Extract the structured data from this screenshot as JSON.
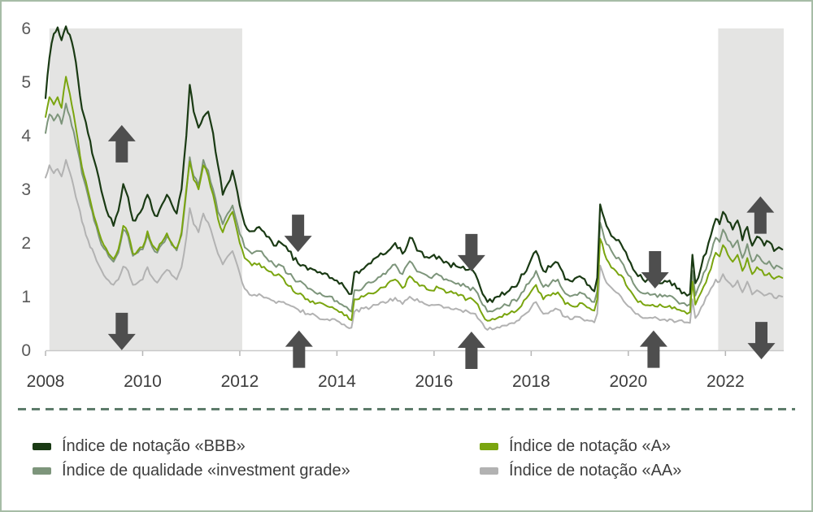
{
  "frame": {
    "border_color": "#a6bca6",
    "background": "#ffffff"
  },
  "divider": {
    "color": "#5e7c6b"
  },
  "chart_data": {
    "type": "line",
    "title": "",
    "xlabel": "",
    "ylabel": "",
    "x_axis": {
      "range": [
        2008,
        2023.2
      ],
      "ticks": [
        2008,
        2010,
        2012,
        2014,
        2016,
        2018,
        2020,
        2022
      ]
    },
    "y_axis": {
      "range": [
        0,
        6
      ],
      "ticks": [
        0,
        1,
        2,
        3,
        4,
        5,
        6
      ]
    },
    "grid": false,
    "legend_position": "bottom",
    "shade_color": "#e4e4e3",
    "shaded_regions": [
      {
        "from": 2008.08,
        "to": 2012.05
      },
      {
        "from": 2021.85,
        "to": 2023.2
      }
    ],
    "arrow_color": "#4e4e4e",
    "arrows": [
      {
        "year": 2009.57,
        "value": 3.85,
        "direction": "up"
      },
      {
        "year": 2009.57,
        "value": 0.35,
        "direction": "down"
      },
      {
        "year": 2013.2,
        "value": 2.18,
        "direction": "down"
      },
      {
        "year": 2013.22,
        "value": 0.02,
        "direction": "up"
      },
      {
        "year": 2016.77,
        "value": 1.82,
        "direction": "down"
      },
      {
        "year": 2016.77,
        "value": 0.0,
        "direction": "up"
      },
      {
        "year": 2020.55,
        "value": 1.5,
        "direction": "down"
      },
      {
        "year": 2020.52,
        "value": 0.02,
        "direction": "up"
      },
      {
        "year": 2022.72,
        "value": 2.52,
        "direction": "up"
      },
      {
        "year": 2022.74,
        "value": 0.18,
        "direction": "down"
      }
    ],
    "layout": {
      "texture_jitter": [
        0.055,
        0.042,
        0.042,
        0.035
      ],
      "draw_order": [
        3,
        1,
        2,
        0
      ]
    },
    "x": [
      2008.0,
      2008.08,
      2008.17,
      2008.25,
      2008.33,
      2008.42,
      2008.5,
      2008.58,
      2008.67,
      2008.75,
      2008.83,
      2008.92,
      2009.0,
      2009.1,
      2009.2,
      2009.3,
      2009.4,
      2009.5,
      2009.6,
      2009.7,
      2009.8,
      2009.9,
      2010.0,
      2010.1,
      2010.2,
      2010.3,
      2010.4,
      2010.5,
      2010.6,
      2010.7,
      2010.8,
      2010.9,
      2010.97,
      2011.05,
      2011.15,
      2011.25,
      2011.35,
      2011.45,
      2011.55,
      2011.65,
      2011.75,
      2011.85,
      2011.95,
      2012.1,
      2012.25,
      2012.4,
      2012.55,
      2012.7,
      2012.85,
      2013.0,
      2013.2,
      2013.4,
      2013.6,
      2013.8,
      2014.0,
      2014.15,
      2014.3,
      2014.36,
      2014.55,
      2014.7,
      2014.85,
      2015.0,
      2015.2,
      2015.35,
      2015.5,
      2015.7,
      2015.9,
      2016.1,
      2016.3,
      2016.5,
      2016.7,
      2016.85,
      2017.0,
      2017.1,
      2017.3,
      2017.5,
      2017.75,
      2018.0,
      2018.1,
      2018.25,
      2018.4,
      2018.55,
      2018.7,
      2018.85,
      2019.0,
      2019.15,
      2019.3,
      2019.36,
      2019.42,
      2019.55,
      2019.7,
      2019.85,
      2020.0,
      2020.15,
      2020.3,
      2020.5,
      2020.7,
      2020.85,
      2021.0,
      2021.15,
      2021.27,
      2021.32,
      2021.38,
      2021.5,
      2021.65,
      2021.8,
      2021.88,
      2021.95,
      2022.05,
      2022.15,
      2022.25,
      2022.35,
      2022.45,
      2022.55,
      2022.65,
      2022.8,
      2022.9,
      2023.0,
      2023.1,
      2023.17
    ],
    "series": [
      {
        "name": "Índice de notação «BBB»",
        "color": "#1a3a14",
        "stroke_width": 2.2,
        "values": [
          4.7,
          5.45,
          5.9,
          6.02,
          5.78,
          6.04,
          5.88,
          5.6,
          5.05,
          4.5,
          4.25,
          3.9,
          3.55,
          3.2,
          2.8,
          2.5,
          2.32,
          2.6,
          3.1,
          2.85,
          2.42,
          2.52,
          2.65,
          2.9,
          2.62,
          2.5,
          2.72,
          2.9,
          2.72,
          2.55,
          3.0,
          4.0,
          4.95,
          4.45,
          4.15,
          4.35,
          4.45,
          4.05,
          3.45,
          2.9,
          3.1,
          3.35,
          2.95,
          2.35,
          2.22,
          2.3,
          2.12,
          1.95,
          2.0,
          1.85,
          1.62,
          1.5,
          1.45,
          1.42,
          1.3,
          1.18,
          1.05,
          1.45,
          1.52,
          1.62,
          1.75,
          1.8,
          2.0,
          1.8,
          2.1,
          1.85,
          1.72,
          1.75,
          1.62,
          1.55,
          1.5,
          1.42,
          1.05,
          0.9,
          1.0,
          1.08,
          1.28,
          1.7,
          1.85,
          1.48,
          1.55,
          1.63,
          1.32,
          1.28,
          1.38,
          1.22,
          1.1,
          1.35,
          2.72,
          2.32,
          2.1,
          1.98,
          1.7,
          1.45,
          1.32,
          1.3,
          1.25,
          1.3,
          1.15,
          1.08,
          1.05,
          1.78,
          1.25,
          1.55,
          2.0,
          2.45,
          2.35,
          2.58,
          2.4,
          2.25,
          2.42,
          2.05,
          2.3,
          1.95,
          2.12,
          1.95,
          2.02,
          1.85,
          1.92,
          1.88
        ]
      },
      {
        "name": "Índice de qualidade «investment grade»",
        "color": "#7d957b",
        "stroke_width": 2.0,
        "values": [
          4.05,
          4.4,
          4.28,
          4.4,
          4.22,
          4.6,
          4.36,
          4.08,
          3.7,
          3.3,
          3.05,
          2.7,
          2.42,
          2.12,
          1.9,
          1.75,
          1.65,
          1.82,
          2.25,
          2.12,
          1.76,
          1.82,
          1.88,
          2.15,
          1.92,
          1.82,
          1.98,
          2.12,
          1.96,
          1.86,
          2.15,
          2.95,
          3.6,
          3.25,
          3.08,
          3.55,
          3.35,
          3.0,
          2.58,
          2.35,
          2.55,
          2.7,
          2.35,
          1.92,
          1.8,
          1.85,
          1.72,
          1.6,
          1.58,
          1.42,
          1.28,
          1.15,
          1.05,
          1.0,
          0.92,
          0.82,
          0.72,
          1.12,
          1.18,
          1.26,
          1.36,
          1.42,
          1.6,
          1.42,
          1.66,
          1.46,
          1.36,
          1.4,
          1.3,
          1.25,
          1.18,
          1.12,
          0.85,
          0.72,
          0.78,
          0.84,
          0.98,
          1.32,
          1.48,
          1.18,
          1.25,
          1.32,
          1.06,
          1.02,
          1.08,
          0.98,
          0.9,
          1.1,
          2.38,
          1.98,
          1.78,
          1.66,
          1.4,
          1.18,
          1.06,
          1.04,
          1.0,
          1.02,
          0.92,
          0.88,
          0.86,
          1.48,
          1.02,
          1.28,
          1.66,
          2.1,
          2.02,
          2.25,
          2.05,
          1.92,
          2.05,
          1.72,
          1.98,
          1.65,
          1.78,
          1.62,
          1.66,
          1.52,
          1.56,
          1.52
        ]
      },
      {
        "name": "Índice de notação «A»",
        "color": "#7aa50f",
        "stroke_width": 2.0,
        "values": [
          4.35,
          4.72,
          4.58,
          4.72,
          4.52,
          5.1,
          4.78,
          4.4,
          3.9,
          3.42,
          3.15,
          2.8,
          2.5,
          2.2,
          1.96,
          1.8,
          1.7,
          1.88,
          2.32,
          2.18,
          1.8,
          1.86,
          1.92,
          2.22,
          1.96,
          1.86,
          2.02,
          2.18,
          2.0,
          1.9,
          2.2,
          3.0,
          3.52,
          3.18,
          3.0,
          3.45,
          3.25,
          2.9,
          2.45,
          2.2,
          2.42,
          2.58,
          2.2,
          1.72,
          1.58,
          1.62,
          1.5,
          1.4,
          1.38,
          1.2,
          1.05,
          0.95,
          0.88,
          0.82,
          0.75,
          0.65,
          0.56,
          0.95,
          1.0,
          1.06,
          1.12,
          1.18,
          1.32,
          1.16,
          1.38,
          1.2,
          1.12,
          1.16,
          1.08,
          1.02,
          0.96,
          0.9,
          0.66,
          0.55,
          0.6,
          0.66,
          0.78,
          1.1,
          1.22,
          0.95,
          1.02,
          1.08,
          0.86,
          0.82,
          0.88,
          0.8,
          0.74,
          0.95,
          2.08,
          1.7,
          1.52,
          1.4,
          1.15,
          0.96,
          0.86,
          0.85,
          0.82,
          0.83,
          0.76,
          0.73,
          0.71,
          1.28,
          0.85,
          1.08,
          1.42,
          1.82,
          1.75,
          1.96,
          1.78,
          1.65,
          1.78,
          1.48,
          1.72,
          1.42,
          1.55,
          1.4,
          1.44,
          1.33,
          1.38,
          1.35
        ]
      },
      {
        "name": "Índice de notação «AA»",
        "color": "#b2b2b2",
        "stroke_width": 2.0,
        "values": [
          3.22,
          3.45,
          3.3,
          3.38,
          3.24,
          3.55,
          3.32,
          3.05,
          2.72,
          2.4,
          2.15,
          1.92,
          1.8,
          1.58,
          1.4,
          1.3,
          1.22,
          1.32,
          1.56,
          1.48,
          1.22,
          1.26,
          1.32,
          1.55,
          1.36,
          1.26,
          1.4,
          1.5,
          1.4,
          1.32,
          1.55,
          2.1,
          2.65,
          2.35,
          2.2,
          2.55,
          2.38,
          2.1,
          1.8,
          1.6,
          1.75,
          1.85,
          1.58,
          1.15,
          1.02,
          1.05,
          0.98,
          0.92,
          0.9,
          0.85,
          0.76,
          0.68,
          0.62,
          0.58,
          0.55,
          0.48,
          0.42,
          0.72,
          0.78,
          0.8,
          0.85,
          0.88,
          0.98,
          0.86,
          1.0,
          0.9,
          0.83,
          0.85,
          0.8,
          0.76,
          0.72,
          0.68,
          0.5,
          0.38,
          0.43,
          0.46,
          0.56,
          0.8,
          0.9,
          0.68,
          0.73,
          0.76,
          0.62,
          0.58,
          0.62,
          0.56,
          0.52,
          0.68,
          1.58,
          1.26,
          1.12,
          1.0,
          0.82,
          0.68,
          0.6,
          0.6,
          0.57,
          0.58,
          0.54,
          0.52,
          0.51,
          0.95,
          0.6,
          0.8,
          1.05,
          1.32,
          1.28,
          1.42,
          1.28,
          1.18,
          1.3,
          1.08,
          1.28,
          1.04,
          1.12,
          1.02,
          1.06,
          0.98,
          1.02,
          1.0
        ]
      }
    ],
    "axis_style": {
      "axis_line_color": "#c9c9c9",
      "tick_mark_color": "#b5b5b5",
      "x_label_color": "#3d3d3d",
      "y_label_color": "#595959",
      "label_font_size": 21
    }
  }
}
